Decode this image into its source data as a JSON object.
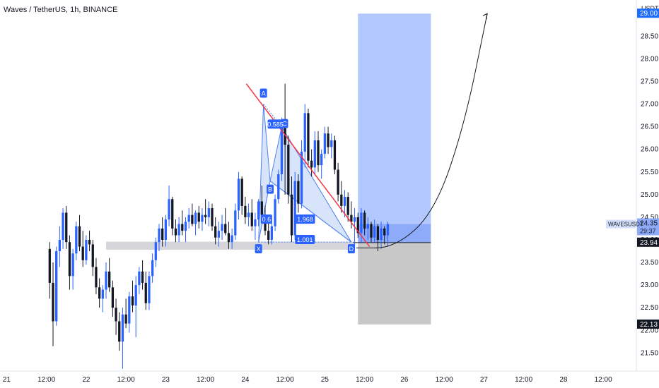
{
  "header": {
    "symbol_title": "Waves / TetherUS, 1h, BINANCE"
  },
  "colors": {
    "up": "#2962ff",
    "down": "#131722",
    "trendline": "#f23645",
    "target_zone": "#b3c8ff",
    "entry_zone": "#8eabf9",
    "stop_zone": "#c8c8c8",
    "support_band": "#d6d6da",
    "pattern_fill": "#c8d9f7",
    "label_bg": "#2962ff",
    "price_badge": "#1c6dff"
  },
  "chart_data": {
    "type": "candlestick",
    "title": "Waves / TetherUS, 1h, BINANCE",
    "currency": "USDT",
    "y_ticks": [
      "21.50",
      "22.00",
      "22.50",
      "23.00",
      "23.50",
      "24.00",
      "24.50",
      "25.00",
      "25.50",
      "26.00",
      "26.50",
      "27.00",
      "27.50",
      "28.00",
      "28.50",
      "29.00"
    ],
    "ylim": [
      21.1,
      29.3
    ],
    "x_ticks": [
      "21",
      "12:00",
      "22",
      "12:00",
      "23",
      "12:00",
      "24",
      "12:00",
      "25",
      "12:00",
      "26",
      "12:00",
      "27",
      "12:00",
      "28",
      "12:00"
    ],
    "x_tick_hours": [
      0,
      12,
      24,
      36,
      48,
      60,
      72,
      84,
      96,
      108,
      120,
      132,
      144,
      156,
      168,
      180
    ],
    "xlim_hours": [
      -2,
      190
    ],
    "last_candle_hour": 115,
    "candles_ohlc": [
      [
        23.8,
        23.95,
        22.7,
        23.05
      ],
      [
        23.05,
        23.5,
        21.65,
        22.2
      ],
      [
        22.2,
        23.85,
        22.1,
        23.75
      ],
      [
        23.75,
        24.3,
        23.4,
        24.0
      ],
      [
        24.0,
        24.7,
        23.8,
        24.6
      ],
      [
        24.6,
        24.75,
        23.8,
        23.95
      ],
      [
        23.95,
        24.1,
        22.9,
        23.2
      ],
      [
        23.2,
        23.8,
        22.9,
        23.7
      ],
      [
        23.7,
        24.4,
        23.55,
        24.3
      ],
      [
        24.3,
        24.55,
        23.75,
        23.85
      ],
      [
        23.85,
        24.2,
        23.4,
        23.55
      ],
      [
        23.55,
        24.1,
        23.45,
        24.0
      ],
      [
        24.0,
        24.2,
        23.75,
        23.9
      ],
      [
        23.9,
        24.0,
        23.2,
        23.4
      ],
      [
        23.4,
        23.6,
        22.8,
        22.95
      ],
      [
        22.95,
        23.15,
        22.5,
        22.7
      ],
      [
        22.7,
        23.0,
        22.4,
        22.9
      ],
      [
        22.9,
        23.5,
        22.7,
        23.3
      ],
      [
        23.3,
        23.6,
        22.85,
        22.95
      ],
      [
        22.95,
        23.1,
        22.3,
        22.5
      ],
      [
        22.5,
        22.7,
        21.9,
        22.2
      ],
      [
        22.2,
        22.4,
        21.55,
        21.75
      ],
      [
        21.75,
        22.5,
        21.15,
        22.35
      ],
      [
        22.35,
        22.7,
        22.05,
        22.15
      ],
      [
        22.15,
        22.85,
        21.95,
        22.75
      ],
      [
        22.75,
        23.1,
        22.4,
        22.55
      ],
      [
        22.55,
        23.2,
        21.85,
        23.0
      ],
      [
        23.0,
        23.4,
        22.8,
        23.3
      ],
      [
        23.3,
        23.55,
        22.9,
        23.05
      ],
      [
        23.05,
        23.3,
        22.45,
        22.6
      ],
      [
        22.6,
        23.3,
        22.45,
        23.2
      ],
      [
        23.2,
        23.7,
        23.05,
        23.55
      ],
      [
        23.55,
        24.05,
        23.4,
        23.95
      ],
      [
        23.95,
        24.35,
        23.75,
        24.25
      ],
      [
        24.25,
        24.5,
        23.85,
        24.0
      ],
      [
        24.0,
        24.55,
        23.85,
        24.45
      ],
      [
        24.45,
        25.2,
        24.3,
        24.9
      ],
      [
        24.9,
        24.95,
        24.1,
        24.25
      ],
      [
        24.25,
        24.45,
        23.95,
        24.1
      ],
      [
        24.1,
        24.5,
        23.95,
        24.35
      ],
      [
        24.35,
        24.65,
        24.1,
        24.2
      ],
      [
        24.2,
        24.5,
        23.95,
        24.4
      ],
      [
        24.4,
        24.7,
        24.25,
        24.55
      ],
      [
        24.55,
        24.8,
        24.3,
        24.35
      ],
      [
        24.35,
        24.65,
        24.1,
        24.6
      ],
      [
        24.6,
        24.75,
        24.25,
        24.4
      ],
      [
        24.4,
        24.7,
        24.2,
        24.55
      ],
      [
        24.55,
        24.9,
        24.35,
        24.5
      ],
      [
        24.5,
        24.85,
        24.3,
        24.7
      ],
      [
        24.7,
        24.8,
        24.2,
        24.3
      ],
      [
        24.3,
        24.5,
        23.9,
        24.05
      ],
      [
        24.05,
        24.4,
        23.85,
        24.2
      ],
      [
        24.2,
        24.55,
        24.0,
        24.35
      ],
      [
        24.35,
        24.7,
        24.1,
        24.15
      ],
      [
        24.15,
        24.4,
        23.8,
        23.95
      ],
      [
        23.95,
        24.25,
        23.8,
        24.1
      ],
      [
        24.1,
        24.8,
        24.0,
        24.65
      ],
      [
        24.65,
        25.5,
        24.45,
        25.35
      ],
      [
        25.35,
        25.4,
        24.55,
        24.75
      ],
      [
        24.75,
        24.95,
        24.35,
        24.5
      ],
      [
        24.5,
        24.8,
        24.3,
        24.6
      ],
      [
        24.6,
        24.9,
        24.2,
        24.3
      ],
      [
        24.3,
        24.6,
        24.0,
        24.45
      ],
      [
        24.45,
        24.9,
        24.3,
        24.85
      ],
      [
        24.85,
        25.2,
        24.4,
        24.55
      ],
      [
        24.55,
        24.75,
        24.1,
        24.2
      ],
      [
        24.2,
        24.4,
        23.9,
        24.0
      ],
      [
        24.0,
        24.4,
        23.9,
        24.3
      ],
      [
        24.3,
        25.0,
        24.2,
        24.9
      ],
      [
        24.9,
        25.55,
        24.8,
        25.45
      ],
      [
        25.45,
        26.7,
        25.3,
        26.5
      ],
      [
        26.5,
        27.45,
        25.0,
        26.1
      ],
      [
        26.1,
        26.3,
        24.8,
        25.0
      ],
      [
        25.0,
        25.4,
        23.95,
        24.1
      ],
      [
        24.1,
        25.5,
        24.0,
        25.3
      ],
      [
        25.3,
        25.45,
        24.6,
        24.8
      ],
      [
        24.8,
        26.2,
        24.7,
        25.95
      ],
      [
        25.95,
        27.0,
        25.6,
        26.8
      ],
      [
        26.8,
        26.9,
        25.6,
        25.75
      ],
      [
        25.75,
        26.0,
        25.4,
        25.6
      ],
      [
        25.6,
        26.4,
        25.45,
        26.2
      ],
      [
        26.2,
        26.4,
        25.5,
        25.65
      ],
      [
        25.65,
        26.0,
        25.35,
        25.9
      ],
      [
        25.9,
        26.5,
        25.8,
        26.35
      ],
      [
        26.35,
        26.5,
        25.9,
        26.05
      ],
      [
        26.05,
        26.35,
        25.8,
        26.2
      ],
      [
        26.2,
        26.3,
        25.45,
        25.55
      ],
      [
        25.55,
        25.7,
        24.85,
        25.0
      ],
      [
        25.0,
        25.3,
        24.6,
        24.75
      ],
      [
        24.75,
        25.1,
        24.5,
        24.95
      ],
      [
        24.95,
        25.05,
        24.4,
        24.55
      ],
      [
        24.55,
        24.85,
        24.25,
        24.4
      ],
      [
        24.4,
        24.7,
        23.8,
        24.5
      ],
      [
        24.5,
        24.6,
        24.05,
        24.15
      ],
      [
        24.15,
        24.7,
        23.95,
        24.6
      ],
      [
        24.6,
        24.65,
        24.1,
        24.25
      ],
      [
        24.25,
        24.5,
        24.0,
        24.35
      ],
      [
        24.35,
        24.4,
        23.95,
        24.05
      ],
      [
        24.05,
        24.45,
        23.95,
        24.3
      ],
      [
        24.3,
        24.35,
        23.75,
        24.0
      ],
      [
        24.0,
        24.4,
        23.8,
        24.25
      ],
      [
        24.25,
        24.3,
        23.9,
        24.1
      ],
      [
        24.1,
        24.4,
        23.85,
        24.35
      ]
    ],
    "harmonic_pattern": {
      "points": {
        "X": {
          "label": "X",
          "hour": 76,
          "price": 23.95
        },
        "A": {
          "label": "A",
          "hour": 77.5,
          "price": 27.0
        },
        "B": {
          "label": "B",
          "hour": 79.5,
          "price": 25.3
        },
        "C": {
          "label": "C",
          "hour": 83,
          "price": 26.5
        },
        "D": {
          "label": "D",
          "hour": 104,
          "price": 23.95
        }
      },
      "ratios": {
        "AC": "0.585",
        "XB": "0.6",
        "BD": "1.968",
        "XD": "1.001"
      }
    },
    "trendline": {
      "from": {
        "hour": 72.3,
        "price": 27.45
      },
      "to": {
        "hour": 109.5,
        "price": 23.85
      }
    },
    "support_zone": {
      "from_hour": -2,
      "to_hour": 105,
      "low": 23.78,
      "high": 23.96
    },
    "position": {
      "start_hour": 106,
      "end_hour": 128,
      "entry": 23.94,
      "entry_high": 24.35,
      "target": 29.0,
      "stop": 22.13
    },
    "projection": {
      "points": [
        [
          105.5,
          23.82
        ],
        [
          117,
          23.82
        ],
        [
          129,
          24.6
        ],
        [
          138,
          26.5
        ],
        [
          145,
          29.0
        ]
      ]
    },
    "price_labels": {
      "currency": "USDT",
      "target": "29.00",
      "current": "24.35",
      "countdown": "29:37",
      "symbol": "WAVESUSDT",
      "entry": "23.94",
      "stop": "22.13"
    }
  }
}
